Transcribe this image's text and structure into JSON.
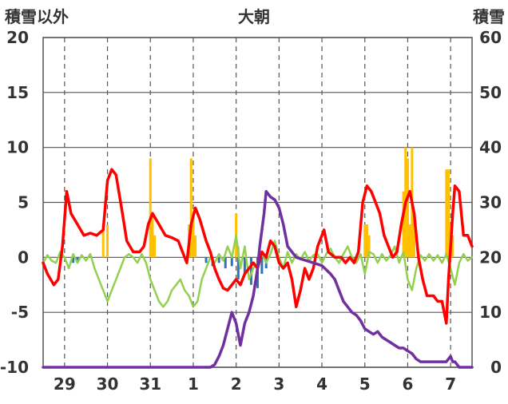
{
  "chart_data": {
    "type": "line",
    "title": "大朝",
    "left_axis_label": "積雪以外",
    "right_axis_label": "積雪",
    "left_axis": {
      "min": -10,
      "max": 20,
      "ticks": [
        "-10",
        "-5",
        "0",
        "5",
        "10",
        "15",
        "20"
      ]
    },
    "right_axis": {
      "min": 0,
      "max": 60,
      "ticks": [
        "0",
        "10",
        "20",
        "30",
        "40",
        "50",
        "60"
      ]
    },
    "x_range": [
      28.5,
      7.5
    ],
    "day_labels": [
      "29",
      "30",
      "31",
      "1",
      "2",
      "3",
      "4",
      "5",
      "6",
      "7"
    ],
    "grid": {
      "vertical": "dashed",
      "horizontal": "solid"
    },
    "series": [
      {
        "key": "orange",
        "type": "bar",
        "axis": "left",
        "color": "#FFC000",
        "points": [
          [
            29.9,
            3.0
          ],
          [
            30.0,
            3.0
          ],
          [
            31.0,
            9.0
          ],
          [
            31.05,
            4.0
          ],
          [
            31.1,
            2.0
          ],
          [
            31.9,
            3.0
          ],
          [
            31.95,
            9.0
          ],
          [
            32.0,
            4.0
          ],
          [
            32.05,
            2.0
          ],
          [
            33.0,
            4.0
          ],
          [
            33.05,
            1.0
          ],
          [
            36.0,
            3.0
          ],
          [
            36.05,
            3.0
          ],
          [
            36.1,
            2.0
          ],
          [
            36.9,
            6.0
          ],
          [
            36.95,
            10.0
          ],
          [
            37.0,
            9.0
          ],
          [
            37.05,
            3.0
          ],
          [
            37.1,
            10.0
          ],
          [
            37.15,
            4.0
          ],
          [
            37.9,
            8.0
          ],
          [
            37.95,
            8.0
          ],
          [
            38.0,
            3.0
          ],
          [
            38.05,
            2.0
          ]
        ]
      },
      {
        "key": "blue",
        "type": "bar",
        "axis": "left",
        "color": "#2E75B6",
        "points": [
          [
            29.2,
            -0.5
          ],
          [
            29.3,
            -0.3
          ],
          [
            32.3,
            -0.5
          ],
          [
            32.45,
            -0.8
          ],
          [
            32.6,
            -0.5
          ],
          [
            32.75,
            -1.0
          ],
          [
            32.9,
            -0.8
          ],
          [
            33.05,
            -2.0
          ],
          [
            33.2,
            -1.5
          ],
          [
            33.35,
            -2.5
          ],
          [
            33.5,
            -2.8
          ],
          [
            33.6,
            -1.5
          ],
          [
            33.7,
            -1.0
          ]
        ]
      },
      {
        "key": "red",
        "type": "line",
        "axis": "left",
        "color": "#FF0000",
        "points": [
          [
            28.5,
            -0.5
          ],
          [
            28.6,
            -1.5
          ],
          [
            28.75,
            -2.5
          ],
          [
            28.85,
            -2.0
          ],
          [
            28.95,
            1.0
          ],
          [
            29.05,
            6.0
          ],
          [
            29.15,
            4.0
          ],
          [
            29.3,
            3.0
          ],
          [
            29.45,
            2.0
          ],
          [
            29.6,
            2.2
          ],
          [
            29.75,
            2.0
          ],
          [
            29.9,
            2.5
          ],
          [
            30.0,
            7.0
          ],
          [
            30.1,
            8.0
          ],
          [
            30.2,
            7.5
          ],
          [
            30.35,
            4.0
          ],
          [
            30.45,
            1.5
          ],
          [
            30.6,
            0.5
          ],
          [
            30.75,
            0.5
          ],
          [
            30.85,
            1.0
          ],
          [
            30.95,
            3.0
          ],
          [
            31.05,
            4.0
          ],
          [
            31.2,
            3.0
          ],
          [
            31.35,
            2.0
          ],
          [
            31.5,
            1.8
          ],
          [
            31.65,
            1.5
          ],
          [
            31.75,
            0.5
          ],
          [
            31.85,
            -0.5
          ],
          [
            31.95,
            3.0
          ],
          [
            32.05,
            4.5
          ],
          [
            32.15,
            3.5
          ],
          [
            32.3,
            1.5
          ],
          [
            32.4,
            0.5
          ],
          [
            32.5,
            -1.0
          ],
          [
            32.6,
            -2.0
          ],
          [
            32.7,
            -2.8
          ],
          [
            32.8,
            -3.0
          ],
          [
            32.9,
            -2.5
          ],
          [
            33.0,
            -2.0
          ],
          [
            33.1,
            -2.5
          ],
          [
            33.2,
            -1.5
          ],
          [
            33.3,
            -1.0
          ],
          [
            33.4,
            -0.5
          ],
          [
            33.5,
            -1.0
          ],
          [
            33.6,
            0.5
          ],
          [
            33.7,
            0.0
          ],
          [
            33.8,
            1.5
          ],
          [
            33.9,
            1.0
          ],
          [
            34.0,
            -0.5
          ],
          [
            34.1,
            -1.0
          ],
          [
            34.2,
            -0.5
          ],
          [
            34.3,
            -2.0
          ],
          [
            34.4,
            -4.5
          ],
          [
            34.5,
            -3.0
          ],
          [
            34.6,
            -1.0
          ],
          [
            34.7,
            -2.0
          ],
          [
            34.8,
            -1.0
          ],
          [
            34.9,
            1.0
          ],
          [
            35.05,
            2.5
          ],
          [
            35.15,
            0.5
          ],
          [
            35.3,
            0.0
          ],
          [
            35.45,
            0.0
          ],
          [
            35.55,
            -0.5
          ],
          [
            35.65,
            0.0
          ],
          [
            35.75,
            -0.5
          ],
          [
            35.85,
            0.5
          ],
          [
            35.95,
            5.0
          ],
          [
            36.05,
            6.5
          ],
          [
            36.15,
            6.0
          ],
          [
            36.25,
            5.0
          ],
          [
            36.35,
            4.0
          ],
          [
            36.45,
            2.0
          ],
          [
            36.55,
            1.0
          ],
          [
            36.65,
            0.0
          ],
          [
            36.75,
            0.5
          ],
          [
            36.85,
            3.0
          ],
          [
            36.95,
            5.0
          ],
          [
            37.05,
            6.0
          ],
          [
            37.15,
            4.0
          ],
          [
            37.25,
            0.0
          ],
          [
            37.35,
            -2.0
          ],
          [
            37.45,
            -3.5
          ],
          [
            37.6,
            -3.5
          ],
          [
            37.7,
            -4.0
          ],
          [
            37.8,
            -4.0
          ],
          [
            37.85,
            -5.0
          ],
          [
            37.9,
            -6.0
          ],
          [
            37.95,
            -2.0
          ],
          [
            38.05,
            4.0
          ],
          [
            38.1,
            6.5
          ],
          [
            38.2,
            6.0
          ],
          [
            38.25,
            4.0
          ],
          [
            38.3,
            2.0
          ],
          [
            38.4,
            2.0
          ],
          [
            38.45,
            1.5
          ],
          [
            38.5,
            1.0
          ]
        ]
      },
      {
        "key": "green",
        "type": "line",
        "axis": "left",
        "color": "#92D050",
        "points": [
          [
            28.5,
            -0.5
          ],
          [
            28.6,
            0.2
          ],
          [
            28.7,
            -0.3
          ],
          [
            28.8,
            -0.5
          ],
          [
            28.9,
            0.5
          ],
          [
            29.0,
            0.0
          ],
          [
            29.1,
            -1.0
          ],
          [
            29.2,
            0.3
          ],
          [
            29.3,
            -0.5
          ],
          [
            29.4,
            0.2
          ],
          [
            29.5,
            -0.3
          ],
          [
            29.6,
            0.3
          ],
          [
            29.7,
            -1.0
          ],
          [
            29.8,
            -2.0
          ],
          [
            29.9,
            -3.0
          ],
          [
            30.0,
            -4.0
          ],
          [
            30.1,
            -3.0
          ],
          [
            30.2,
            -2.0
          ],
          [
            30.3,
            -1.0
          ],
          [
            30.4,
            0.0
          ],
          [
            30.5,
            0.3
          ],
          [
            30.6,
            0.0
          ],
          [
            30.7,
            -0.5
          ],
          [
            30.8,
            0.3
          ],
          [
            30.9,
            -0.5
          ],
          [
            31.0,
            -2.0
          ],
          [
            31.1,
            -3.0
          ],
          [
            31.2,
            -4.0
          ],
          [
            31.3,
            -4.5
          ],
          [
            31.4,
            -4.0
          ],
          [
            31.5,
            -3.0
          ],
          [
            31.6,
            -2.5
          ],
          [
            31.7,
            -2.0
          ],
          [
            31.8,
            -3.0
          ],
          [
            31.9,
            -3.5
          ],
          [
            32.0,
            -4.5
          ],
          [
            32.1,
            -4.0
          ],
          [
            32.2,
            -2.0
          ],
          [
            32.3,
            -1.0
          ],
          [
            32.4,
            0.0
          ],
          [
            32.5,
            -0.5
          ],
          [
            32.6,
            0.3
          ],
          [
            32.7,
            -0.3
          ],
          [
            32.8,
            1.0
          ],
          [
            32.9,
            0.0
          ],
          [
            33.0,
            2.0
          ],
          [
            33.1,
            -1.0
          ],
          [
            33.2,
            1.0
          ],
          [
            33.3,
            -2.0
          ],
          [
            33.4,
            -1.0
          ],
          [
            33.5,
            -0.5
          ],
          [
            33.6,
            0.5
          ],
          [
            33.7,
            -0.5
          ],
          [
            33.8,
            0.3
          ],
          [
            33.9,
            1.5
          ],
          [
            34.0,
            0.0
          ],
          [
            34.1,
            -1.0
          ],
          [
            34.2,
            0.5
          ],
          [
            34.3,
            -0.5
          ],
          [
            34.4,
            0.3
          ],
          [
            34.5,
            -0.2
          ],
          [
            34.6,
            0.5
          ],
          [
            34.7,
            -0.3
          ],
          [
            34.8,
            0.2
          ],
          [
            34.9,
            0.3
          ],
          [
            35.0,
            -0.5
          ],
          [
            35.1,
            0.3
          ],
          [
            35.2,
            0.8
          ],
          [
            35.3,
            0.0
          ],
          [
            35.4,
            -0.5
          ],
          [
            35.5,
            0.3
          ],
          [
            35.6,
            1.0
          ],
          [
            35.7,
            0.0
          ],
          [
            35.8,
            -0.5
          ],
          [
            35.9,
            0.3
          ],
          [
            36.0,
            -1.5
          ],
          [
            36.1,
            0.5
          ],
          [
            36.2,
            0.3
          ],
          [
            36.3,
            -0.5
          ],
          [
            36.4,
            0.3
          ],
          [
            36.5,
            -0.3
          ],
          [
            36.6,
            0.2
          ],
          [
            36.7,
            1.0
          ],
          [
            36.8,
            -0.5
          ],
          [
            36.9,
            0.5
          ],
          [
            37.0,
            -2.0
          ],
          [
            37.1,
            -3.0
          ],
          [
            37.2,
            -1.0
          ],
          [
            37.3,
            0.2
          ],
          [
            37.4,
            -0.3
          ],
          [
            37.5,
            0.3
          ],
          [
            37.6,
            -0.3
          ],
          [
            37.7,
            0.2
          ],
          [
            37.8,
            -0.5
          ],
          [
            37.9,
            0.3
          ],
          [
            38.0,
            -1.0
          ],
          [
            38.1,
            -2.5
          ],
          [
            38.2,
            -0.5
          ],
          [
            38.3,
            0.3
          ],
          [
            38.4,
            -0.3
          ],
          [
            38.5,
            0.0
          ]
        ]
      },
      {
        "key": "purple",
        "type": "line",
        "axis": "right",
        "color": "#7030A0",
        "points": [
          [
            28.5,
            0.0
          ],
          [
            32.4,
            0.0
          ],
          [
            32.5,
            0.5
          ],
          [
            32.6,
            2.0
          ],
          [
            32.7,
            4.0
          ],
          [
            32.8,
            7.0
          ],
          [
            32.9,
            10.0
          ],
          [
            33.0,
            8.0
          ],
          [
            33.1,
            4.0
          ],
          [
            33.2,
            8.0
          ],
          [
            33.3,
            10.0
          ],
          [
            33.4,
            13.0
          ],
          [
            33.5,
            18.0
          ],
          [
            33.55,
            22.0
          ],
          [
            33.6,
            25.0
          ],
          [
            33.65,
            28.0
          ],
          [
            33.7,
            32.0
          ],
          [
            33.8,
            31.0
          ],
          [
            33.9,
            30.5
          ],
          [
            34.0,
            29.0
          ],
          [
            34.1,
            26.0
          ],
          [
            34.2,
            22.0
          ],
          [
            34.3,
            21.0
          ],
          [
            34.4,
            20.0
          ],
          [
            34.6,
            19.5
          ],
          [
            34.8,
            19.0
          ],
          [
            35.0,
            18.5
          ],
          [
            35.2,
            17.0
          ],
          [
            35.3,
            16.0
          ],
          [
            35.4,
            14.0
          ],
          [
            35.5,
            12.0
          ],
          [
            35.6,
            11.0
          ],
          [
            35.7,
            10.0
          ],
          [
            35.8,
            9.5
          ],
          [
            35.9,
            8.5
          ],
          [
            36.0,
            7.0
          ],
          [
            36.1,
            6.5
          ],
          [
            36.2,
            6.0
          ],
          [
            36.3,
            6.5
          ],
          [
            36.4,
            5.5
          ],
          [
            36.5,
            5.0
          ],
          [
            36.6,
            4.5
          ],
          [
            36.7,
            4.0
          ],
          [
            36.8,
            3.5
          ],
          [
            36.9,
            3.5
          ],
          [
            37.0,
            3.0
          ],
          [
            37.1,
            2.5
          ],
          [
            37.2,
            1.5
          ],
          [
            37.3,
            1.0
          ],
          [
            37.4,
            1.0
          ],
          [
            37.6,
            1.0
          ],
          [
            37.8,
            1.0
          ],
          [
            37.9,
            1.0
          ],
          [
            38.0,
            2.0
          ],
          [
            38.05,
            1.0
          ],
          [
            38.1,
            1.0
          ],
          [
            38.2,
            0.0
          ],
          [
            38.5,
            0.0
          ]
        ]
      }
    ]
  }
}
